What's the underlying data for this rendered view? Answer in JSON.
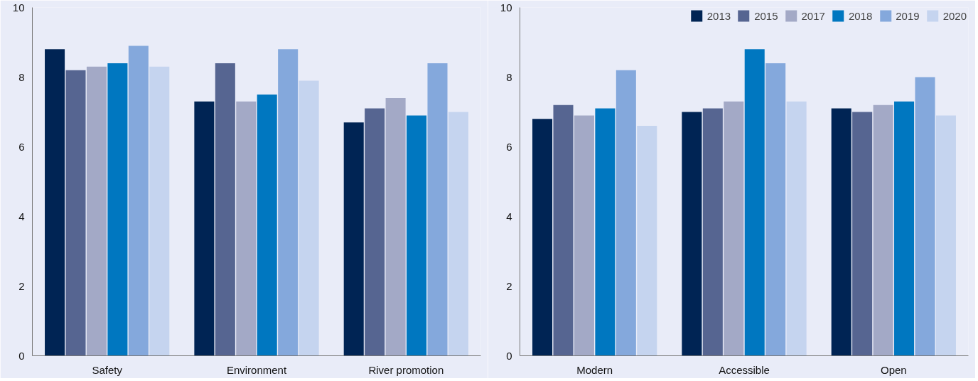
{
  "chart_data": [
    {
      "type": "bar",
      "categories": [
        "Safety",
        "Environment",
        "River promotion"
      ],
      "ylim": [
        0,
        10
      ],
      "yticks": [
        0,
        2,
        4,
        6,
        8,
        10
      ],
      "grid": false,
      "legend": false,
      "series": [
        {
          "color": "#002454",
          "values": [
            8.8,
            7.3,
            6.7
          ]
        },
        {
          "color": "#566591",
          "values": [
            8.2,
            8.4,
            7.1
          ]
        },
        {
          "color": "#a3a9c6",
          "values": [
            8.3,
            7.3,
            7.4
          ]
        },
        {
          "color": "#0077c0",
          "values": [
            8.4,
            7.5,
            6.9
          ]
        },
        {
          "color": "#84a8dc",
          "values": [
            8.9,
            8.8,
            8.4
          ]
        },
        {
          "color": "#c5d4ef",
          "values": [
            8.3,
            7.9,
            7.0
          ]
        }
      ]
    },
    {
      "type": "bar",
      "categories": [
        "Modern",
        "Accessible",
        "Open"
      ],
      "ylim": [
        0,
        10
      ],
      "yticks": [
        0,
        2,
        4,
        6,
        8,
        10
      ],
      "grid": false,
      "legend": "top right",
      "series": [
        {
          "name": "2013",
          "color": "#002454",
          "values": [
            6.8,
            7.0,
            7.1
          ]
        },
        {
          "name": "2015",
          "color": "#566591",
          "values": [
            7.2,
            7.1,
            7.0
          ]
        },
        {
          "name": "2017",
          "color": "#a3a9c6",
          "values": [
            6.9,
            7.3,
            7.2
          ]
        },
        {
          "name": "2018",
          "color": "#0077c0",
          "values": [
            7.1,
            8.8,
            7.3
          ]
        },
        {
          "name": "2019",
          "color": "#84a8dc",
          "values": [
            8.2,
            8.4,
            8.0
          ]
        },
        {
          "name": "2020",
          "color": "#c5d4ef",
          "values": [
            6.6,
            7.3,
            6.9
          ]
        }
      ]
    }
  ]
}
